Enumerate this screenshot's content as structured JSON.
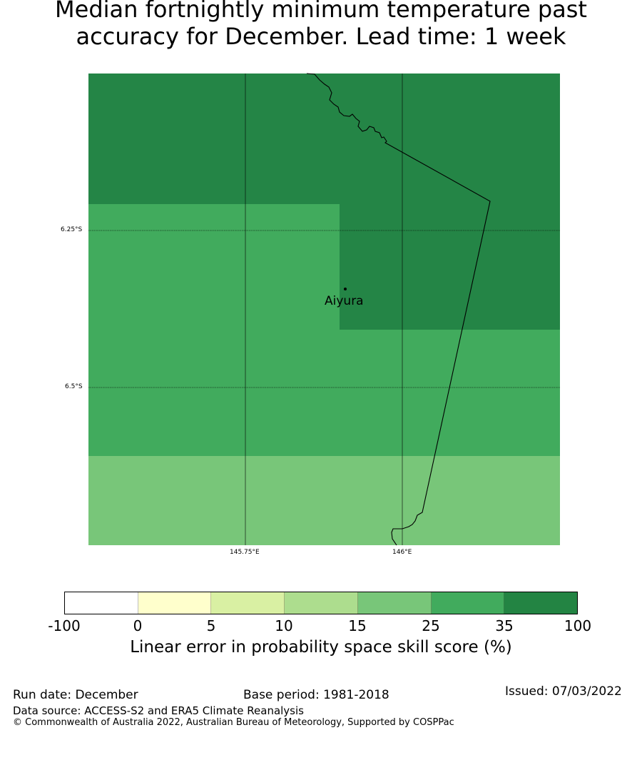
{
  "title_line1": "Median fortnightly minimum temperature past",
  "title_line2": "accuracy for December. Lead time: 1 week",
  "map": {
    "lat_labels": [
      "6.25°S",
      "6.5°S"
    ],
    "lon_labels": [
      "145.75°E",
      "146°E"
    ],
    "place": "Aiyura",
    "colors": {
      "dark": "#248546",
      "mid": "#41ab5d",
      "light": "#78c679"
    }
  },
  "colorbar": {
    "ticks": [
      "-100",
      "0",
      "5",
      "10",
      "15",
      "25",
      "35",
      "100"
    ],
    "colors": [
      "#ffffff",
      "#ffffcc",
      "#d9f0a3",
      "#addd8e",
      "#78c679",
      "#41ab5d",
      "#238443"
    ],
    "label": "Linear error in probability space skill score (%)"
  },
  "footer": {
    "run_date": "Run date: December",
    "base_period": "Base period: 1981-2018",
    "issued": "Issued: 07/03/2022",
    "source": "Data source: ACCESS-S2 and ERA5 Climate Reanalysis",
    "copyright": "© Commonwealth of Australia 2022, Australian Bureau of Meteorology, Supported by COSPPac"
  }
}
